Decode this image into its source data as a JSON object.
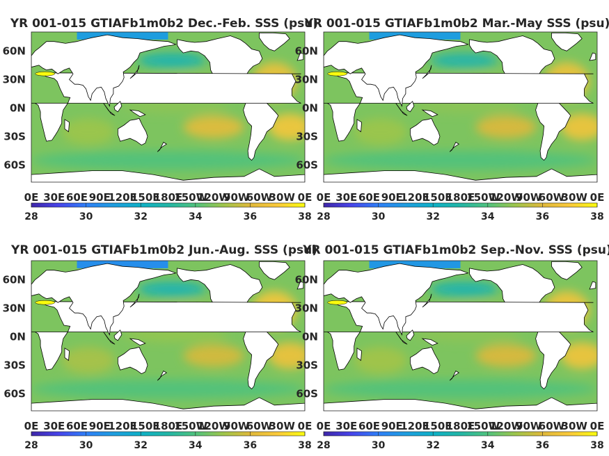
{
  "chart_data": [
    {
      "type": "heatmap",
      "title": "YR 001-015 GTIAFb1m0b2 Dec.-Feb. SSS (psu)",
      "xticks": [
        "0E",
        "30E",
        "60E",
        "90E",
        "120E",
        "150E",
        "180E",
        "150W",
        "120W",
        "90W",
        "60W",
        "30W",
        "0E"
      ],
      "yticks": [
        "60N",
        "30N",
        "0N",
        "30S",
        "60S"
      ],
      "colorbar": {
        "ticks": [
          28,
          30,
          32,
          34,
          36,
          38
        ],
        "range": [
          28,
          38
        ]
      },
      "basin_means_psu": {
        "north_atlantic_subtropics": 36.5,
        "south_atlantic_subtropics": 36.8,
        "south_pacific_subtropics": 36.2,
        "north_pacific_subtropics": 35.0,
        "indian_ocean": 35.0,
        "equatorial_pacific": 34.8,
        "southern_ocean": 34.0,
        "north_pacific_high_lat": 32.6,
        "arctic": 31.0,
        "mediterranean": 38.0
      }
    },
    {
      "type": "heatmap",
      "title": "YR 001-015 GTIAFb1m0b2 Mar.-May SSS (psu)",
      "xticks": [
        "0E",
        "30E",
        "60E",
        "90E",
        "120E",
        "150E",
        "180E",
        "150W",
        "120W",
        "90W",
        "60W",
        "30W",
        "0E"
      ],
      "yticks": [
        "60N",
        "30N",
        "0N",
        "30S",
        "60S"
      ],
      "colorbar": {
        "ticks": [
          28,
          30,
          32,
          34,
          36,
          38
        ],
        "range": [
          28,
          38
        ]
      },
      "basin_means_psu": {
        "north_atlantic_subtropics": 36.6,
        "south_atlantic_subtropics": 36.7,
        "south_pacific_subtropics": 36.0,
        "north_pacific_subtropics": 35.0,
        "indian_ocean": 35.0,
        "equatorial_pacific": 34.8,
        "southern_ocean": 34.0,
        "north_pacific_high_lat": 32.7,
        "arctic": 31.0,
        "mediterranean": 38.0
      }
    },
    {
      "type": "heatmap",
      "title": "YR 001-015 GTIAFb1m0b2 Jun.-Aug. SSS (psu)",
      "xticks": [
        "0E",
        "30E",
        "60E",
        "90E",
        "120E",
        "150E",
        "180E",
        "150W",
        "120W",
        "90W",
        "60W",
        "30W",
        "0E"
      ],
      "yticks": [
        "60N",
        "30N",
        "0N",
        "30S",
        "60S"
      ],
      "colorbar": {
        "ticks": [
          28,
          30,
          32,
          34,
          36,
          38
        ],
        "range": [
          28,
          38
        ]
      },
      "basin_means_psu": {
        "north_atlantic_subtropics": 36.8,
        "south_atlantic_subtropics": 36.6,
        "south_pacific_subtropics": 35.9,
        "north_pacific_subtropics": 35.2,
        "indian_ocean": 35.2,
        "equatorial_pacific": 34.9,
        "southern_ocean": 34.0,
        "north_pacific_high_lat": 32.5,
        "arctic": 30.5,
        "mediterranean": 38.0
      }
    },
    {
      "type": "heatmap",
      "title": "YR 001-015 GTIAFb1m0b2 Sep.-Nov. SSS (psu)",
      "xticks": [
        "0E",
        "30E",
        "60E",
        "90E",
        "120E",
        "150E",
        "180E",
        "150W",
        "120W",
        "90W",
        "60W",
        "30W",
        "0E"
      ],
      "yticks": [
        "60N",
        "30N",
        "0N",
        "30S",
        "60S"
      ],
      "colorbar": {
        "ticks": [
          28,
          30,
          32,
          34,
          36,
          38
        ],
        "range": [
          28,
          38
        ]
      },
      "basin_means_psu": {
        "north_atlantic_subtropics": 36.7,
        "south_atlantic_subtropics": 36.7,
        "south_pacific_subtropics": 36.0,
        "north_pacific_subtropics": 35.1,
        "indian_ocean": 35.1,
        "equatorial_pacific": 34.8,
        "southern_ocean": 34.0,
        "north_pacific_high_lat": 32.6,
        "arctic": 30.8,
        "mediterranean": 38.0
      }
    }
  ],
  "colormap": {
    "name": "parula",
    "low_color": "#3e26a8",
    "mid_color": "#22b5a5",
    "high_color": "#f9fb0e"
  }
}
